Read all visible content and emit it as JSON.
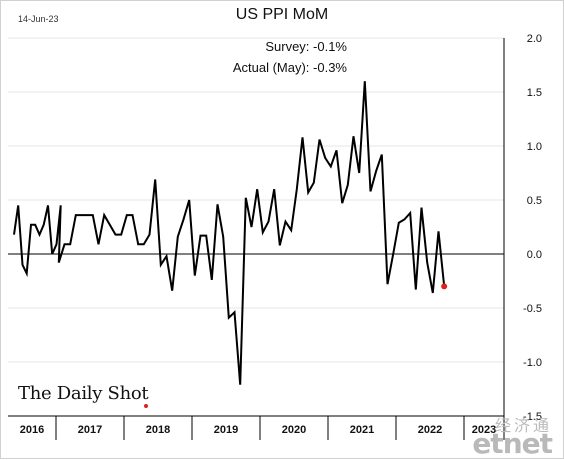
{
  "header": {
    "date": "14-Jun-23",
    "title": "US PPI MoM"
  },
  "annotations": {
    "survey": "Survey:  -0.1%",
    "actual": "Actual (May):  -0.3%"
  },
  "branding": {
    "logo": "The Daily Shot",
    "watermark_cn": "经济通",
    "watermark_en": "etnet"
  },
  "colors": {
    "line": "#000000",
    "highlight": "#e02020",
    "zero_line": "#000000",
    "grid": "#e6e6e6"
  },
  "chart_data": {
    "type": "line",
    "title": "US PPI MoM",
    "xlabel": "",
    "ylabel": "",
    "ylim": [
      -1.5,
      2.0
    ],
    "yticks": [
      -1.5,
      -1.0,
      -0.5,
      0.0,
      0.5,
      1.0,
      1.5,
      2.0
    ],
    "ytick_labels": [
      "-1.5",
      "-1.0",
      "-0.5",
      "0.0",
      "0.5",
      "1.0",
      "1.5",
      "2.0"
    ],
    "grid": true,
    "x_start": "2016-01",
    "x_end": "2023-05",
    "year_labels": [
      "2016",
      "2017",
      "2018",
      "2019",
      "2020",
      "2021",
      "2022",
      "2023"
    ],
    "series": [
      {
        "values": [
          0.18,
          0.45,
          -0.1,
          -0.18,
          0.27,
          0.27,
          0.18,
          0.27,
          0.45,
          0.0,
          0.09,
          0.45,
          -0.08,
          0.09,
          0.09,
          0.36,
          0.36,
          0.36,
          0.36,
          0.09,
          0.36,
          0.27,
          0.18,
          0.18,
          0.36,
          0.36,
          0.09,
          0.09,
          0.18,
          0.69,
          -0.1,
          -0.02,
          -0.34,
          0.16,
          0.32,
          0.5,
          -0.2,
          0.17,
          0.17,
          -0.24,
          0.46,
          0.16,
          -0.59,
          -0.54,
          -1.21,
          0.52,
          0.25,
          0.6,
          0.2,
          0.3,
          0.6,
          0.08,
          0.3,
          0.22,
          0.6,
          1.08,
          0.57,
          0.66,
          1.06,
          0.89,
          0.81,
          0.96,
          0.47,
          0.64,
          1.09,
          0.75,
          1.6,
          0.58,
          0.77,
          0.92,
          -0.28,
          0.0,
          0.29,
          0.32,
          0.38,
          -0.33,
          0.43,
          -0.08,
          -0.36,
          0.21,
          -0.3
        ]
      }
    ],
    "highlight_last_point": true
  }
}
